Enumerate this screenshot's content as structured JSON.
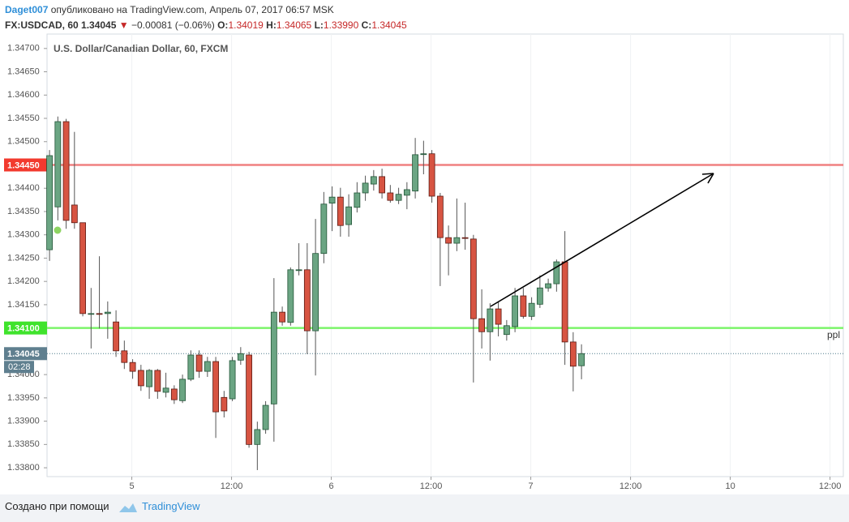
{
  "header": {
    "author": "Daget007",
    "published": "опубликовано на TradingView.com, Апрель 07, 2017 06:57 MSK",
    "symbol": "FX:USDCAD, 60",
    "last": "1.34045",
    "direction": "▼",
    "change": "−0.00081 (−0.06%)",
    "ohlc": [
      {
        "label": "O:",
        "value": "1.34019"
      },
      {
        "label": "H:",
        "value": "1.34065"
      },
      {
        "label": "L:",
        "value": "1.33990"
      },
      {
        "label": "C:",
        "value": "1.34045"
      }
    ]
  },
  "footer": {
    "text": "Создано при помощи",
    "brand": "TradingView"
  },
  "chart_data": {
    "type": "candlestick",
    "title": "U.S. Dollar/Canadian Dollar, 60, FXCM",
    "up_color": "#6ba583",
    "down_color": "#d75442",
    "open": [
      1.34268,
      1.3436,
      1.34543,
      1.34364,
      1.34326,
      1.3413,
      1.34131,
      1.34131,
      1.34113,
      1.34051,
      1.34026,
      1.34009,
      1.33974,
      1.34009,
      1.33962,
      1.33969,
      1.33944,
      1.3399,
      1.34042,
      1.34007,
      1.34028,
      1.33951,
      1.33948,
      1.34031,
      1.34042,
      1.3385,
      1.33882,
      1.33937,
      1.34134,
      1.34112,
      1.34224,
      1.34225,
      1.34094,
      1.3426,
      1.34368,
      1.34381,
      1.34322,
      1.34359,
      1.3439,
      1.34409,
      1.34425,
      1.3439,
      1.34374,
      1.34385,
      1.34394,
      1.34473,
      1.34474,
      1.34383,
      1.34294,
      1.34282,
      1.34294,
      1.34291,
      1.3412,
      1.34092,
      1.34141,
      1.34086,
      1.34103,
      1.34169,
      1.34125,
      1.34151,
      1.34186,
      1.34195,
      1.34242,
      1.3407,
      1.34019
    ],
    "high": [
      1.34482,
      1.34554,
      1.34549,
      1.34521,
      1.34326,
      1.34186,
      1.34254,
      1.34157,
      1.34138,
      1.34073,
      1.34033,
      1.34021,
      1.34012,
      1.34012,
      1.34004,
      1.33977,
      1.34,
      1.34052,
      1.34052,
      1.34038,
      1.34038,
      1.33965,
      1.34038,
      1.34059,
      1.34049,
      1.33899,
      1.33943,
      1.34207,
      1.34146,
      1.3423,
      1.34282,
      1.34282,
      1.34334,
      1.34392,
      1.34404,
      1.34401,
      1.34387,
      1.34413,
      1.34427,
      1.34439,
      1.34442,
      1.34407,
      1.34401,
      1.34413,
      1.34508,
      1.34502,
      1.34482,
      1.3439,
      1.3432,
      1.34378,
      1.34369,
      1.343,
      1.34183,
      1.34153,
      1.34157,
      1.34117,
      1.34186,
      1.34186,
      1.34166,
      1.34213,
      1.34206,
      1.34247,
      1.34308,
      1.34091,
      1.34065
    ],
    "low": [
      1.34244,
      1.34331,
      1.34313,
      1.34313,
      1.34125,
      1.34056,
      1.34099,
      1.34077,
      1.34038,
      1.34012,
      1.33991,
      1.33965,
      1.33948,
      1.33948,
      1.33951,
      1.33937,
      1.33939,
      1.33986,
      1.33993,
      1.33995,
      1.33864,
      1.33908,
      1.33943,
      1.34021,
      1.33843,
      1.33795,
      1.33873,
      1.33856,
      1.34105,
      1.34105,
      1.34213,
      1.34044,
      1.33998,
      1.34239,
      1.34308,
      1.34296,
      1.34296,
      1.34348,
      1.34373,
      1.34395,
      1.34378,
      1.34369,
      1.34366,
      1.34355,
      1.34378,
      1.3443,
      1.34369,
      1.3419,
      1.34213,
      1.34265,
      1.34268,
      1.33983,
      1.34056,
      1.3403,
      1.34082,
      1.34073,
      1.34091,
      1.3412,
      1.34117,
      1.34143,
      1.34178,
      1.34178,
      1.34021,
      1.33964,
      1.3399
    ],
    "close": [
      1.3447,
      1.34543,
      1.34331,
      1.34326,
      1.34131,
      1.34131,
      1.3413,
      1.34134,
      1.34051,
      1.34026,
      1.34007,
      1.33976,
      1.34009,
      1.33964,
      1.33971,
      1.33946,
      1.3399,
      1.34042,
      1.34007,
      1.34028,
      1.3392,
      1.33922,
      1.3403,
      1.34045,
      1.3385,
      1.33882,
      1.33934,
      1.34134,
      1.34113,
      1.34225,
      1.34225,
      1.34094,
      1.3426,
      1.34366,
      1.34381,
      1.3432,
      1.3436,
      1.3439,
      1.34411,
      1.34425,
      1.3439,
      1.34374,
      1.34387,
      1.34397,
      1.34472,
      1.34474,
      1.34383,
      1.34294,
      1.34282,
      1.34294,
      1.34293,
      1.3412,
      1.34092,
      1.34141,
      1.34108,
      1.34105,
      1.34169,
      1.34125,
      1.34153,
      1.34186,
      1.34195,
      1.34242,
      1.3407,
      1.34018,
      1.34045
    ],
    "xlim": [
      -0.3,
      95.5
    ],
    "xticks": [
      {
        "value": 9.9,
        "label": "5"
      },
      {
        "value": 21.9,
        "label": "12:00"
      },
      {
        "value": 33.9,
        "label": "6"
      },
      {
        "value": 45.9,
        "label": "12:00"
      },
      {
        "value": 57.9,
        "label": "7"
      },
      {
        "value": 69.9,
        "label": "12:00"
      },
      {
        "value": 81.9,
        "label": "10"
      },
      {
        "value": 93.9,
        "label": "12:00"
      }
    ],
    "ylim": [
      1.33781,
      1.34731
    ],
    "yticks": [
      {
        "value": 1.347,
        "label": "1.34700"
      },
      {
        "value": 1.3465,
        "label": "1.34650"
      },
      {
        "value": 1.346,
        "label": "1.34600"
      },
      {
        "value": 1.3455,
        "label": "1.34550"
      },
      {
        "value": 1.345,
        "label": "1.34500"
      },
      {
        "value": 1.344,
        "label": "1.34400"
      },
      {
        "value": 1.3435,
        "label": "1.34350"
      },
      {
        "value": 1.343,
        "label": "1.34300"
      },
      {
        "value": 1.3425,
        "label": "1.34250"
      },
      {
        "value": 1.342,
        "label": "1.34200"
      },
      {
        "value": 1.3415,
        "label": "1.34150"
      },
      {
        "value": 1.34,
        "label": "1.34000"
      },
      {
        "value": 1.3395,
        "label": "1.33950"
      },
      {
        "value": 1.339,
        "label": "1.33900"
      },
      {
        "value": 1.3385,
        "label": "1.33850"
      },
      {
        "value": 1.338,
        "label": "1.33800"
      }
    ],
    "hlines": [
      {
        "value": 1.3445,
        "label": "1.34450",
        "color": "#f08080",
        "label_color": "#f23a2e"
      },
      {
        "value": 1.341,
        "label": "1.34100",
        "color": "#7cf56a",
        "label_color": "#3fe32c",
        "name": "ppl"
      }
    ],
    "last_price": {
      "value": 1.34045,
      "label": "1.34045",
      "countdown": "02:28"
    },
    "grid": true
  }
}
